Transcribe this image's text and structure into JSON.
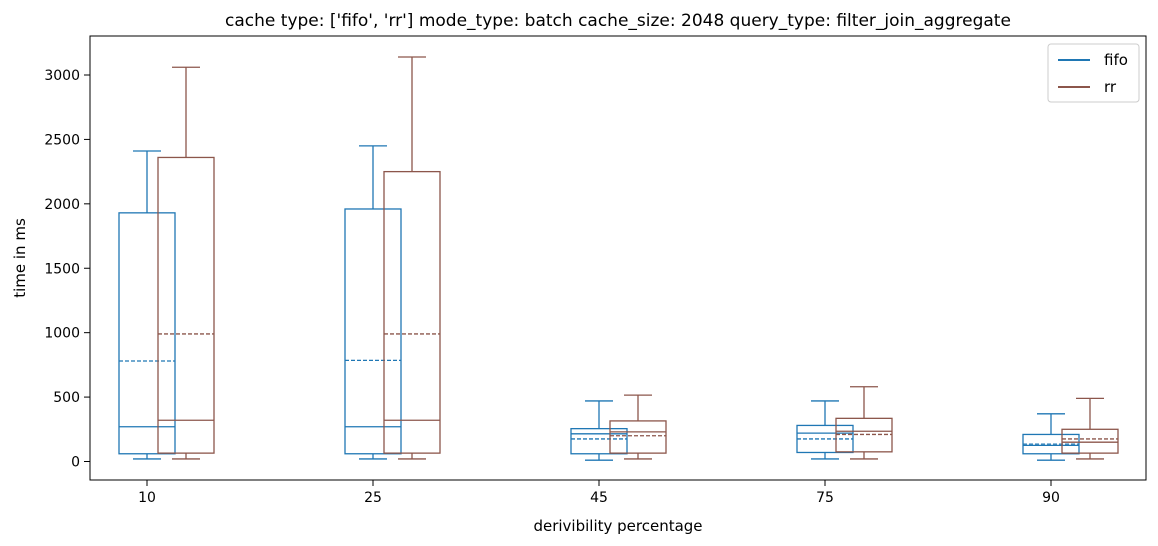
{
  "chart_data": {
    "type": "box",
    "title": "cache type: ['fifo', 'rr'] mode_type: batch cache_size: 2048 query_type: filter_join_aggregate",
    "xlabel": "derivibility percentage",
    "ylabel": "time in ms",
    "categories": [
      "10",
      "25",
      "45",
      "75",
      "90"
    ],
    "yticks": [
      0,
      500,
      1000,
      1500,
      2000,
      2500,
      3000
    ],
    "ylim": [
      -150,
      3300
    ],
    "legend": {
      "position": "top-right"
    },
    "series": [
      {
        "name": "fifo",
        "color": "#1f77b4",
        "boxes": [
          {
            "whislo": 20,
            "q1": 60,
            "med": 270,
            "mean": 780,
            "q3": 1930,
            "whishi": 2410
          },
          {
            "whislo": 20,
            "q1": 60,
            "med": 270,
            "mean": 785,
            "q3": 1960,
            "whishi": 2450
          },
          {
            "whislo": 10,
            "q1": 60,
            "med": 215,
            "mean": 175,
            "q3": 255,
            "whishi": 470
          },
          {
            "whislo": 20,
            "q1": 70,
            "med": 220,
            "mean": 175,
            "q3": 280,
            "whishi": 470
          },
          {
            "whislo": 10,
            "q1": 60,
            "med": 125,
            "mean": 135,
            "q3": 210,
            "whishi": 370
          }
        ]
      },
      {
        "name": "rr",
        "color": "#8c564b",
        "boxes": [
          {
            "whislo": 20,
            "q1": 65,
            "med": 320,
            "mean": 990,
            "q3": 2360,
            "whishi": 3060
          },
          {
            "whislo": 20,
            "q1": 65,
            "med": 320,
            "mean": 990,
            "q3": 2250,
            "whishi": 3140
          },
          {
            "whislo": 20,
            "q1": 65,
            "med": 230,
            "mean": 200,
            "q3": 315,
            "whishi": 515
          },
          {
            "whislo": 20,
            "q1": 75,
            "med": 235,
            "mean": 210,
            "q3": 335,
            "whishi": 580
          },
          {
            "whislo": 20,
            "q1": 65,
            "med": 150,
            "mean": 175,
            "q3": 250,
            "whishi": 490
          }
        ]
      }
    ]
  }
}
